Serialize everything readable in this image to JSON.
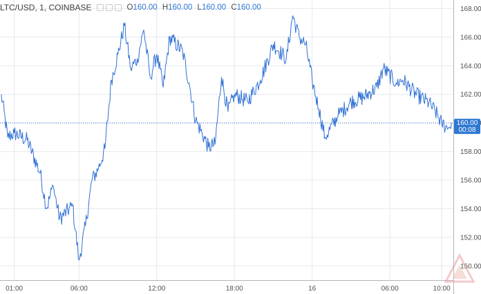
{
  "legend": {
    "symbol": "LTC/USD, 1, COINBASE",
    "o_label": "O",
    "o_value": "160.00",
    "h_label": "H",
    "h_value": "160.00",
    "l_label": "L",
    "l_value": "160.00",
    "c_label": "C",
    "c_value": "160.00"
  },
  "colors": {
    "line": "#2e6fd4",
    "price_badge": "#2e78d2",
    "axis_text": "#505050",
    "grid": "#e4e8ee",
    "watermark": "#e8a0a0"
  },
  "price_badge": {
    "price": "160.00",
    "countdown": "00:08"
  },
  "chart_data": {
    "type": "line",
    "title": "LTC/USD, 1, COINBASE",
    "xlabel": "",
    "ylabel": "",
    "ylim": [
      149,
      168.6
    ],
    "y_ticks": [
      "150.00",
      "152.00",
      "154.00",
      "156.00",
      "158.00",
      "160.00",
      "162.00",
      "164.00",
      "166.00",
      "168.00"
    ],
    "x_ticks": [
      "01:00",
      "06:00",
      "12:00",
      "18:00",
      "16",
      "06:00",
      "10:00"
    ],
    "grid": true,
    "current_price": 160.0,
    "series": [
      {
        "x": [
          "00:00",
          "00:30",
          "01:00",
          "02:00",
          "03:00",
          "03:30",
          "04:00",
          "04:30",
          "05:30",
          "06:00",
          "06:30",
          "07:00",
          "07:30",
          "08:00",
          "08:30",
          "09:00",
          "09:30",
          "10:00",
          "10:30",
          "11:00",
          "11:30",
          "12:00",
          "12:30",
          "13:00",
          "14:00",
          "14:30",
          "15:00",
          "15:30",
          "16:00",
          "16:30",
          "17:00",
          "17:30",
          "18:00",
          "19:00",
          "20:00",
          "21:00",
          "22:00",
          "22:30",
          "23:00",
          "23:30",
          "00:00",
          "00:30",
          "01:00",
          "02:00",
          "03:00",
          "04:00",
          "05:00",
          "05:30",
          "06:30",
          "07:00",
          "08:00",
          "09:00",
          "09:30",
          "10:00",
          "10:30",
          "10:45"
        ],
        "values": [
          162.0,
          159.0,
          159.3,
          158.8,
          156.5,
          154.0,
          155.6,
          153.3,
          154.2,
          150.4,
          152.8,
          156.0,
          156.8,
          158.2,
          163.0,
          164.8,
          166.8,
          163.8,
          164.5,
          166.5,
          163.2,
          164.8,
          162.5,
          166.0,
          165.0,
          162.8,
          160.2,
          159.3,
          158.3,
          158.5,
          163.2,
          160.8,
          162.0,
          161.5,
          163.0,
          165.5,
          164.5,
          167.5,
          166.0,
          165.5,
          163.0,
          161.0,
          159.0,
          160.5,
          161.5,
          161.8,
          162.5,
          163.8,
          162.8,
          163.0,
          162.0,
          161.4,
          160.8,
          160.0,
          159.6,
          160.0
        ]
      }
    ]
  }
}
